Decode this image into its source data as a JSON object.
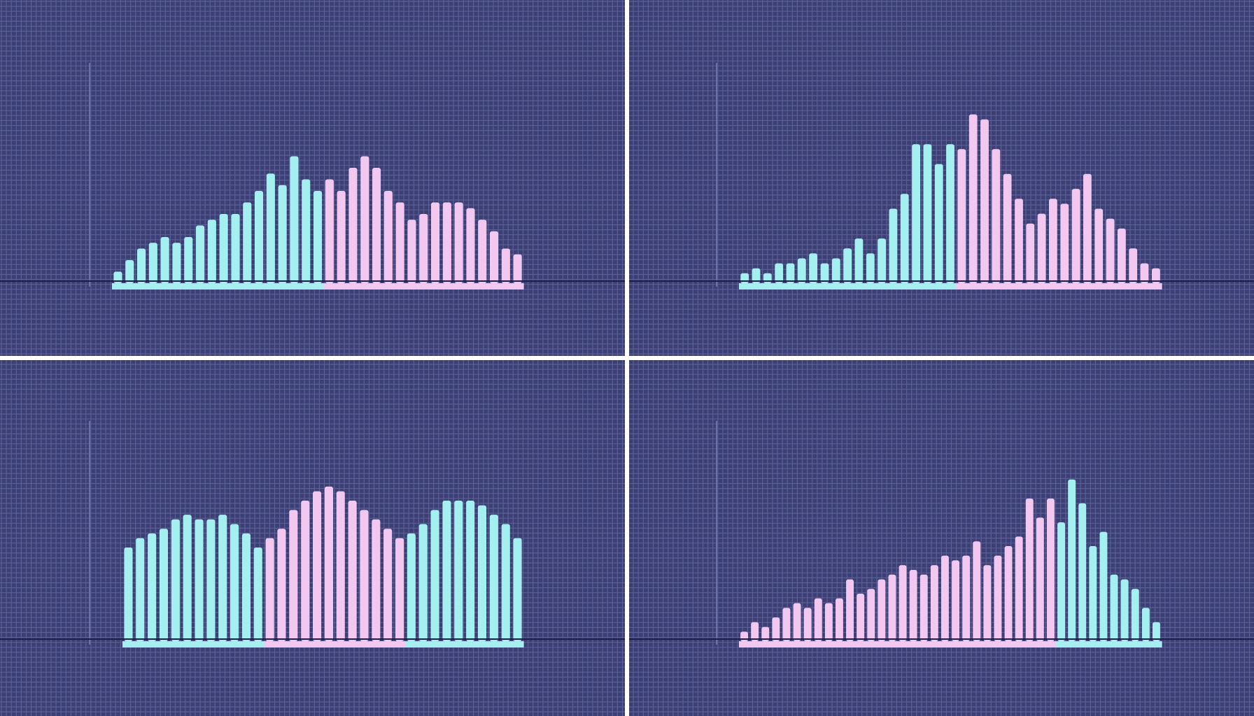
{
  "colors": {
    "background": "#3b3f73",
    "grid": "#5a5f96",
    "cyan": "#a4f0f0",
    "pink": "#f2c8f0",
    "divider": "#ffffff",
    "baseline": "#1d1f45"
  },
  "chart_data": [
    {
      "type": "bar",
      "panel": "top-left",
      "title": "",
      "xlabel": "",
      "ylabel": "",
      "grid": true,
      "ylim": [
        0,
        20
      ],
      "values": [
        1,
        2,
        3,
        3.5,
        4,
        3.5,
        4,
        5,
        5.5,
        6,
        6,
        7,
        8,
        9.5,
        8.5,
        11,
        9,
        8,
        9,
        8,
        10,
        11,
        10,
        8,
        7,
        5.5,
        6,
        7,
        7,
        7,
        6.5,
        5.5,
        4.5,
        3,
        2.5
      ],
      "colors": [
        "cyan",
        "cyan",
        "cyan",
        "cyan",
        "cyan",
        "cyan",
        "cyan",
        "cyan",
        "cyan",
        "cyan",
        "cyan",
        "cyan",
        "cyan",
        "cyan",
        "cyan",
        "cyan",
        "cyan",
        "cyan",
        "pink",
        "pink",
        "pink",
        "pink",
        "pink",
        "pink",
        "pink",
        "pink",
        "pink",
        "pink",
        "pink",
        "pink",
        "pink",
        "pink",
        "pink",
        "pink",
        "pink"
      ]
    },
    {
      "type": "bar",
      "panel": "top-right",
      "title": "",
      "xlabel": "",
      "ylabel": "",
      "grid": true,
      "ylim": [
        0,
        20
      ],
      "values": [
        1,
        1.5,
        1,
        2,
        2,
        2.5,
        3,
        2,
        2.5,
        3.5,
        4.5,
        3,
        4.5,
        7.5,
        9,
        14,
        14,
        12,
        14,
        13.5,
        17,
        16.5,
        13.5,
        11,
        8.5,
        6,
        7,
        8.5,
        8,
        9.5,
        11,
        7.5,
        6.5,
        5.5,
        3.5,
        2,
        1.5
      ],
      "colors": [
        "cyan",
        "cyan",
        "cyan",
        "cyan",
        "cyan",
        "cyan",
        "cyan",
        "cyan",
        "cyan",
        "cyan",
        "cyan",
        "cyan",
        "cyan",
        "cyan",
        "cyan",
        "cyan",
        "cyan",
        "cyan",
        "cyan",
        "pink",
        "pink",
        "pink",
        "pink",
        "pink",
        "pink",
        "pink",
        "pink",
        "pink",
        "pink",
        "pink",
        "pink",
        "pink",
        "pink",
        "pink",
        "pink",
        "pink",
        "pink"
      ]
    },
    {
      "type": "bar",
      "panel": "bottom-left",
      "title": "",
      "xlabel": "",
      "ylabel": "",
      "grid": true,
      "ylim": [
        0,
        20
      ],
      "values": [
        10,
        11,
        11.5,
        12,
        13,
        13.5,
        13,
        13,
        13.5,
        12.5,
        11.5,
        10,
        11,
        12,
        14,
        15,
        16,
        16.5,
        16,
        15,
        14,
        13,
        12,
        11,
        11.5,
        12.5,
        14,
        15,
        15,
        15,
        14.5,
        13.5,
        12.5,
        11
      ],
      "colors": [
        "cyan",
        "cyan",
        "cyan",
        "cyan",
        "cyan",
        "cyan",
        "cyan",
        "cyan",
        "cyan",
        "cyan",
        "cyan",
        "cyan",
        "pink",
        "pink",
        "pink",
        "pink",
        "pink",
        "pink",
        "pink",
        "pink",
        "pink",
        "pink",
        "pink",
        "pink",
        "cyan",
        "cyan",
        "cyan",
        "cyan",
        "cyan",
        "cyan",
        "cyan",
        "cyan",
        "cyan",
        "cyan"
      ]
    },
    {
      "type": "bar",
      "panel": "bottom-right",
      "title": "",
      "xlabel": "",
      "ylabel": "",
      "grid": true,
      "ylim": [
        0,
        20
      ],
      "values": [
        1,
        2,
        1.5,
        2.5,
        3.5,
        4,
        3.5,
        4.5,
        4,
        4.5,
        6.5,
        5,
        5.5,
        6.5,
        7,
        8,
        7.5,
        7,
        8,
        9,
        8.5,
        9,
        10.5,
        8,
        9,
        10,
        11,
        15,
        13,
        15,
        12.5,
        17,
        14.5,
        10,
        11.5,
        7,
        6.5,
        5.5,
        3.5,
        2
      ],
      "colors": [
        "pink",
        "pink",
        "pink",
        "pink",
        "pink",
        "pink",
        "pink",
        "pink",
        "pink",
        "pink",
        "pink",
        "pink",
        "pink",
        "pink",
        "pink",
        "pink",
        "pink",
        "pink",
        "pink",
        "pink",
        "pink",
        "pink",
        "pink",
        "pink",
        "pink",
        "pink",
        "pink",
        "pink",
        "pink",
        "pink",
        "cyan",
        "cyan",
        "cyan",
        "cyan",
        "cyan",
        "cyan",
        "cyan",
        "cyan",
        "cyan",
        "cyan"
      ]
    }
  ]
}
